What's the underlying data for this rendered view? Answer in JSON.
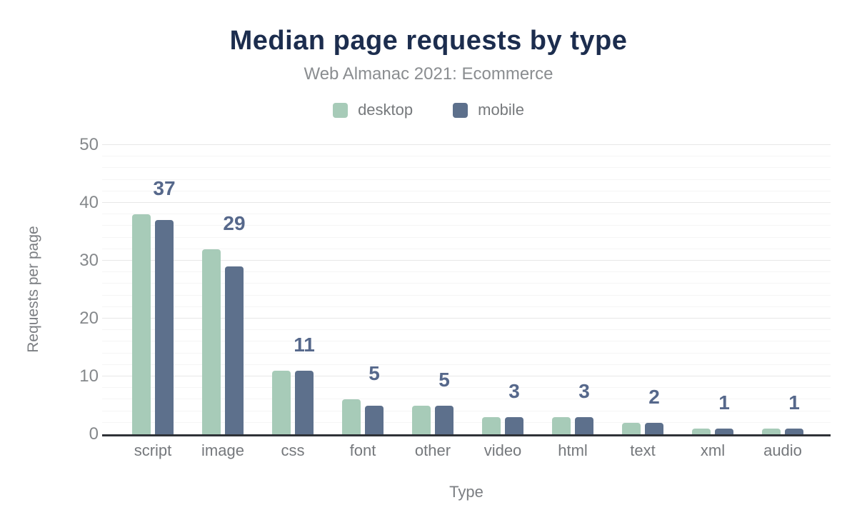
{
  "chart_data": {
    "type": "bar",
    "title": "Median page requests by type",
    "subtitle": "Web Almanac 2021: Ecommerce",
    "xlabel": "Type",
    "ylabel": "Requests per page",
    "ylim": [
      0,
      50
    ],
    "yticks": [
      0,
      10,
      20,
      30,
      40,
      50
    ],
    "minor_grid_step": 2,
    "grid": "on",
    "legend_position": "top",
    "categories": [
      "script",
      "image",
      "css",
      "font",
      "other",
      "video",
      "html",
      "text",
      "xml",
      "audio"
    ],
    "series": [
      {
        "name": "desktop",
        "color": "#a7cbb8",
        "values": [
          38,
          32,
          11,
          6,
          5,
          3,
          3,
          2,
          1,
          1
        ]
      },
      {
        "name": "mobile",
        "color": "#5d708c",
        "values": [
          37,
          29,
          11,
          5,
          5,
          3,
          3,
          2,
          1,
          1
        ]
      }
    ],
    "data_labels": [
      "37",
      "29",
      "11",
      "5",
      "5",
      "3",
      "3",
      "2",
      "1",
      "1"
    ],
    "colors": {
      "title": "#1c2d4e",
      "subtitle": "#8a8d90",
      "axis_line": "#2f3237",
      "tick_label": "#85888b",
      "annotation": "#56688b",
      "major_grid": "#e7e7e7",
      "minor_grid": "#f5f5f5"
    }
  }
}
